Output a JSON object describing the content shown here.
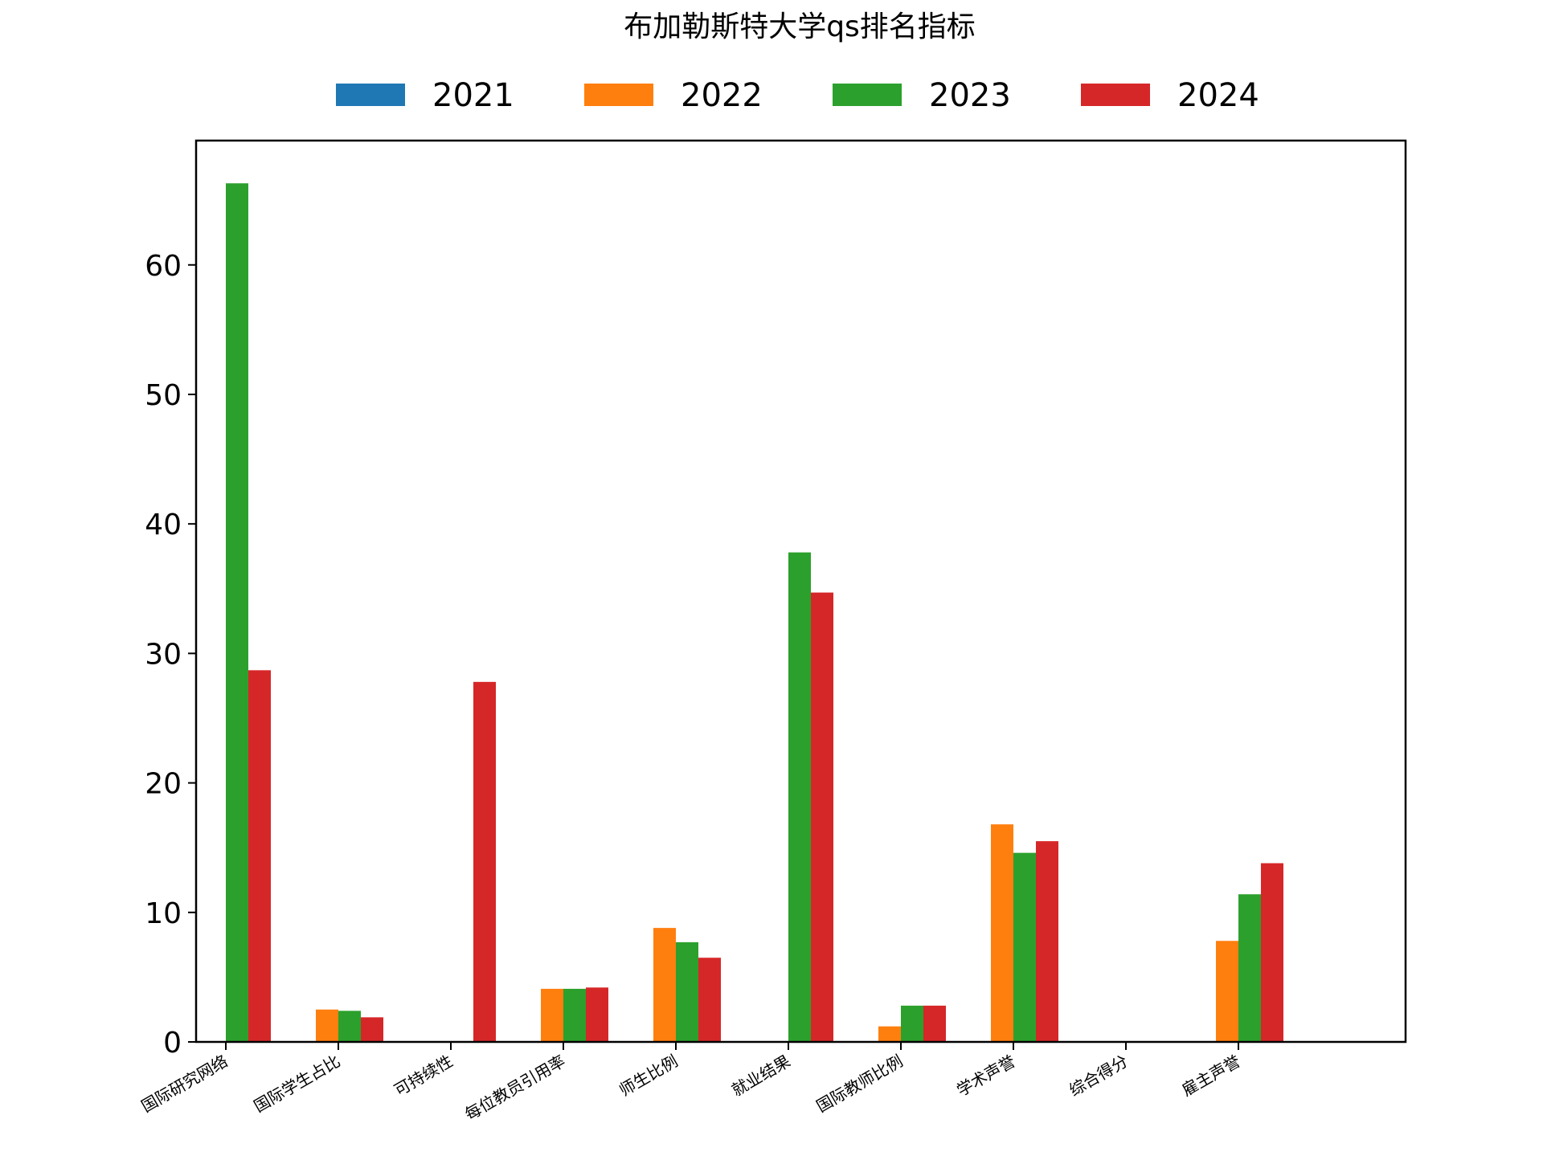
{
  "chart_data": {
    "type": "bar",
    "title": "布加勒斯特大学qs排名指标",
    "xlabel": "",
    "ylabel": "",
    "categories": [
      "国际研究网络",
      "国际学生占比",
      "可持续性",
      "每位教员引用率",
      "师生比例",
      "就业结果",
      "国际教师比例",
      "学术声誉",
      "综合得分",
      "雇主声誉"
    ],
    "series": [
      {
        "name": "2021",
        "color": "#1f77b4",
        "values": [
          0,
          0,
          0,
          0,
          0,
          0,
          0,
          0,
          0,
          0
        ]
      },
      {
        "name": "2022",
        "color": "#ff7f0e",
        "values": [
          0,
          2.5,
          0,
          4.1,
          8.8,
          0,
          1.2,
          16.8,
          0,
          7.8
        ]
      },
      {
        "name": "2023",
        "color": "#2ca02c",
        "values": [
          66.3,
          2.4,
          0,
          4.1,
          7.7,
          37.8,
          2.8,
          14.6,
          0,
          11.4
        ]
      },
      {
        "name": "2024",
        "color": "#d62728",
        "values": [
          28.7,
          1.9,
          27.8,
          4.2,
          6.5,
          34.7,
          2.8,
          15.5,
          0,
          13.8
        ]
      }
    ],
    "ylim": [
      0,
      69.6
    ],
    "yticks": [
      0,
      10,
      20,
      30,
      40,
      50,
      60
    ],
    "grid": false,
    "legend_position": "top-center"
  }
}
